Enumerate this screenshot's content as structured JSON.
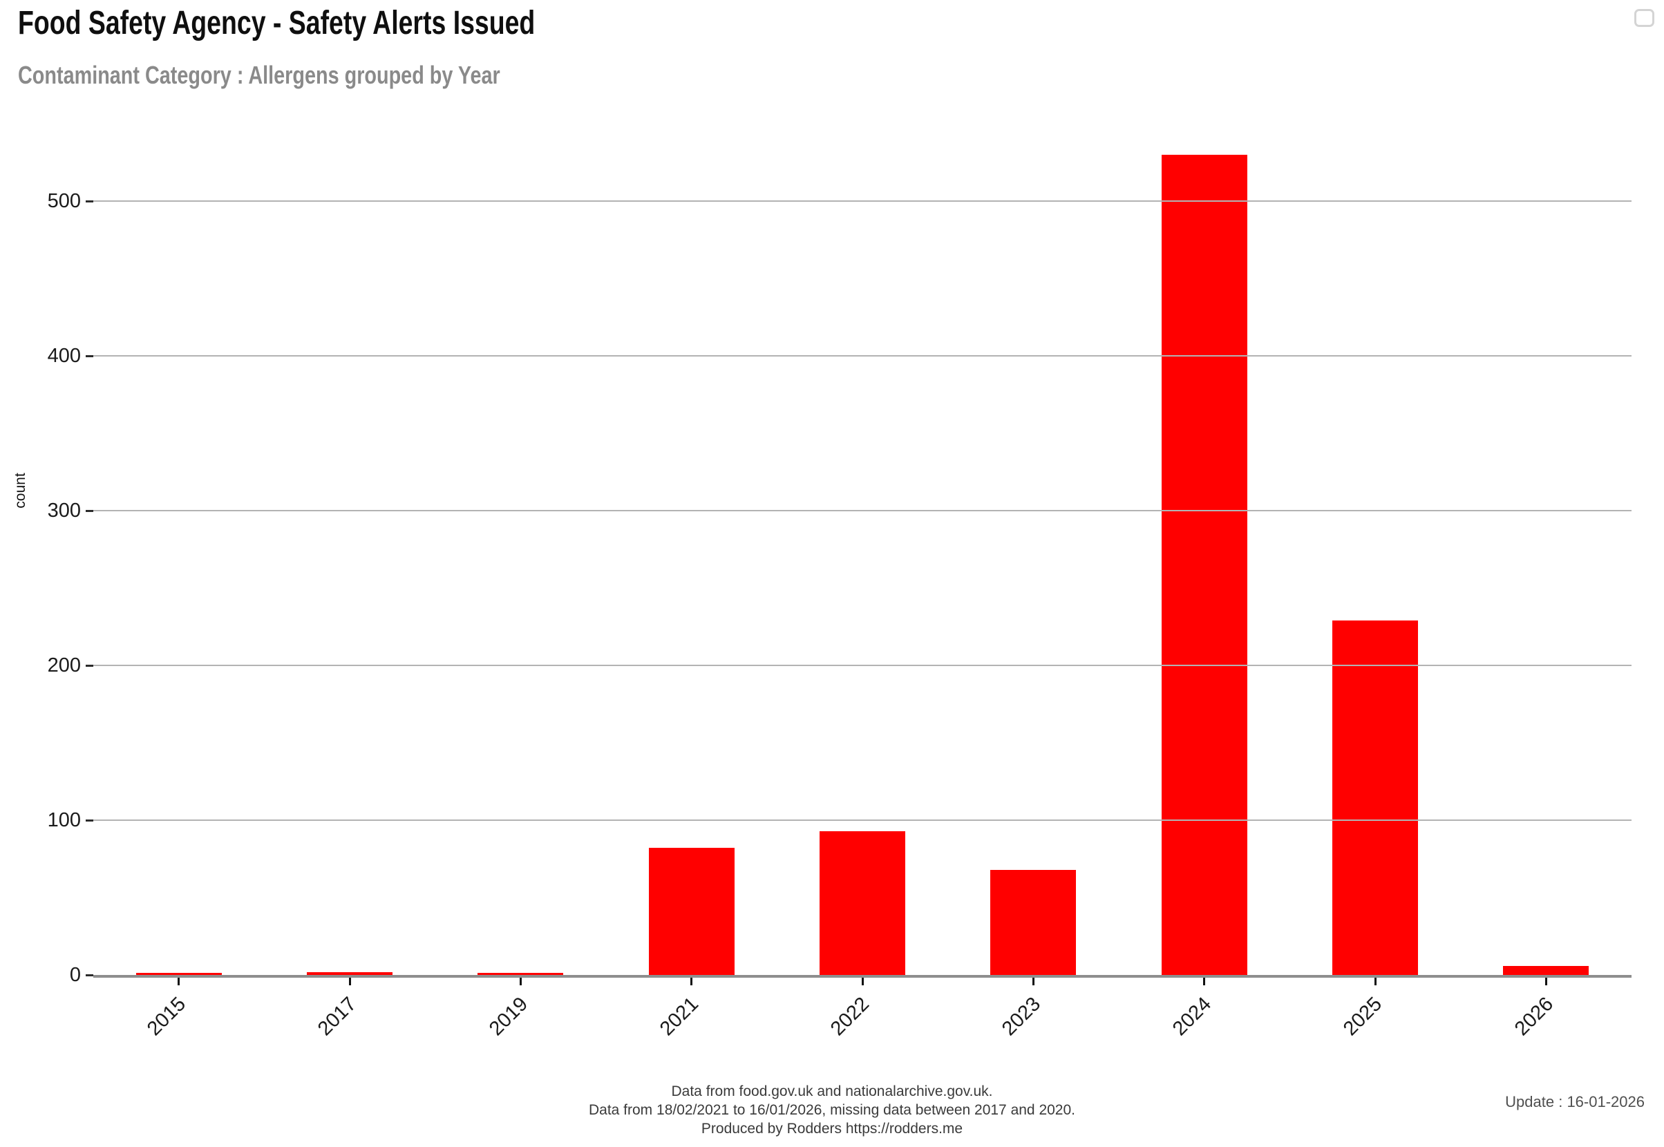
{
  "header": {
    "title": "Food Safety Agency - Safety Alerts Issued",
    "subtitle": "Contaminant Category : Allergens grouped by Year"
  },
  "chart_data": {
    "type": "bar",
    "title": "Food Safety Agency - Safety Alerts Issued",
    "subtitle": "Contaminant Category : Allergens grouped by Year",
    "categories": [
      "2015",
      "2017",
      "2019",
      "2021",
      "2022",
      "2023",
      "2024",
      "2025",
      "2026"
    ],
    "values": [
      1,
      2,
      1,
      82,
      93,
      68,
      530,
      229,
      6
    ],
    "series_name": "count",
    "xlabel": "",
    "ylabel": "count",
    "yticks": [
      0,
      100,
      200,
      300,
      400,
      500
    ],
    "ylim": [
      0,
      560
    ],
    "bar_color": "#ff0000",
    "grid": "horizontal-only",
    "gridlines_above_bars": true,
    "legend": "none",
    "x_tick_rotation": -45
  },
  "footer": {
    "line1": "Data from food.gov.uk and nationalarchive.gov.uk.",
    "line2": "Data from 18/02/2021 to 16/01/2026, missing data between 2017 and 2020.",
    "line3": "Produced by Rodders https://rodders.me",
    "update": "Update : 16-01-2026"
  },
  "colors": {
    "bar": "#ff0000",
    "axis_line": "#8e8e8e",
    "gridline": "#b3b3b3",
    "title_text": "#0f0f0f",
    "subtitle_text": "#8a8a8a",
    "tick_label": "#1a1a1a",
    "footer_text": "#3a3a3a",
    "update_text": "#4f4f4f"
  }
}
